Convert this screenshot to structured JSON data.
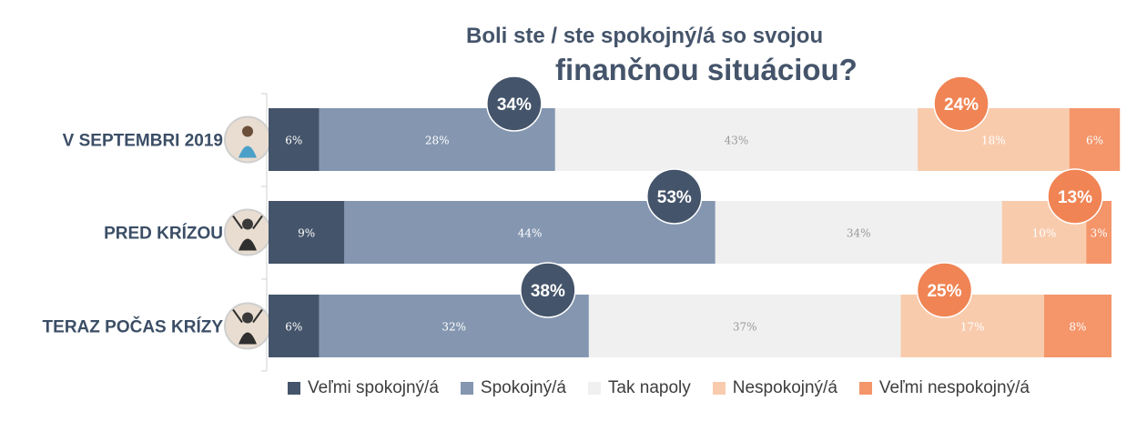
{
  "chart_data": {
    "type": "bar",
    "orientation": "horizontal",
    "stacked": true,
    "title_line1": "Boli ste / ste spokojný/á so svojou",
    "title_line2": "finančnou situáciou?",
    "xlim": [
      0,
      100
    ],
    "categories": [
      "V SEPTEMBRI 2019",
      "PRED KRÍZOU",
      "TERAZ POČAS KRÍZY"
    ],
    "series": [
      {
        "name": "Veľmi spokojný/á",
        "color": "#44546a",
        "label_color": "#ffffff",
        "values": [
          6,
          9,
          6
        ],
        "labels": [
          "6%",
          "9%",
          "6%"
        ]
      },
      {
        "name": "Spokojný/á",
        "color": "#8496b0",
        "label_color": "#ffffff",
        "values": [
          28,
          44,
          32
        ],
        "labels": [
          "28%",
          "44%",
          "32%"
        ]
      },
      {
        "name": "Tak napoly",
        "color": "#f0f0f0",
        "label_color": "#9a9a9a",
        "values": [
          43,
          34,
          37
        ],
        "labels": [
          "43%",
          "34%",
          "37%"
        ]
      },
      {
        "name": "Nespokojný/á",
        "color": "#f8cbad",
        "label_color": "#ffffff",
        "values": [
          18,
          10,
          17
        ],
        "labels": [
          "18%",
          "10%",
          "17%"
        ]
      },
      {
        "name": "Veľmi nespokojný/á",
        "color": "#f4956a",
        "label_color": "#ffffff",
        "values": [
          6,
          3,
          8
        ],
        "labels": [
          "6%",
          "3%",
          "8%"
        ]
      }
    ],
    "totals": {
      "satisfied": {
        "values": [
          34,
          53,
          38
        ],
        "labels": [
          "34%",
          "53%",
          "38%"
        ],
        "color": "#44546a"
      },
      "dissatisfied": {
        "values": [
          24,
          13,
          25
        ],
        "labels": [
          "24%",
          "13%",
          "25%"
        ],
        "color": "#f08454"
      }
    },
    "legend_position": "bottom",
    "grid": false
  }
}
